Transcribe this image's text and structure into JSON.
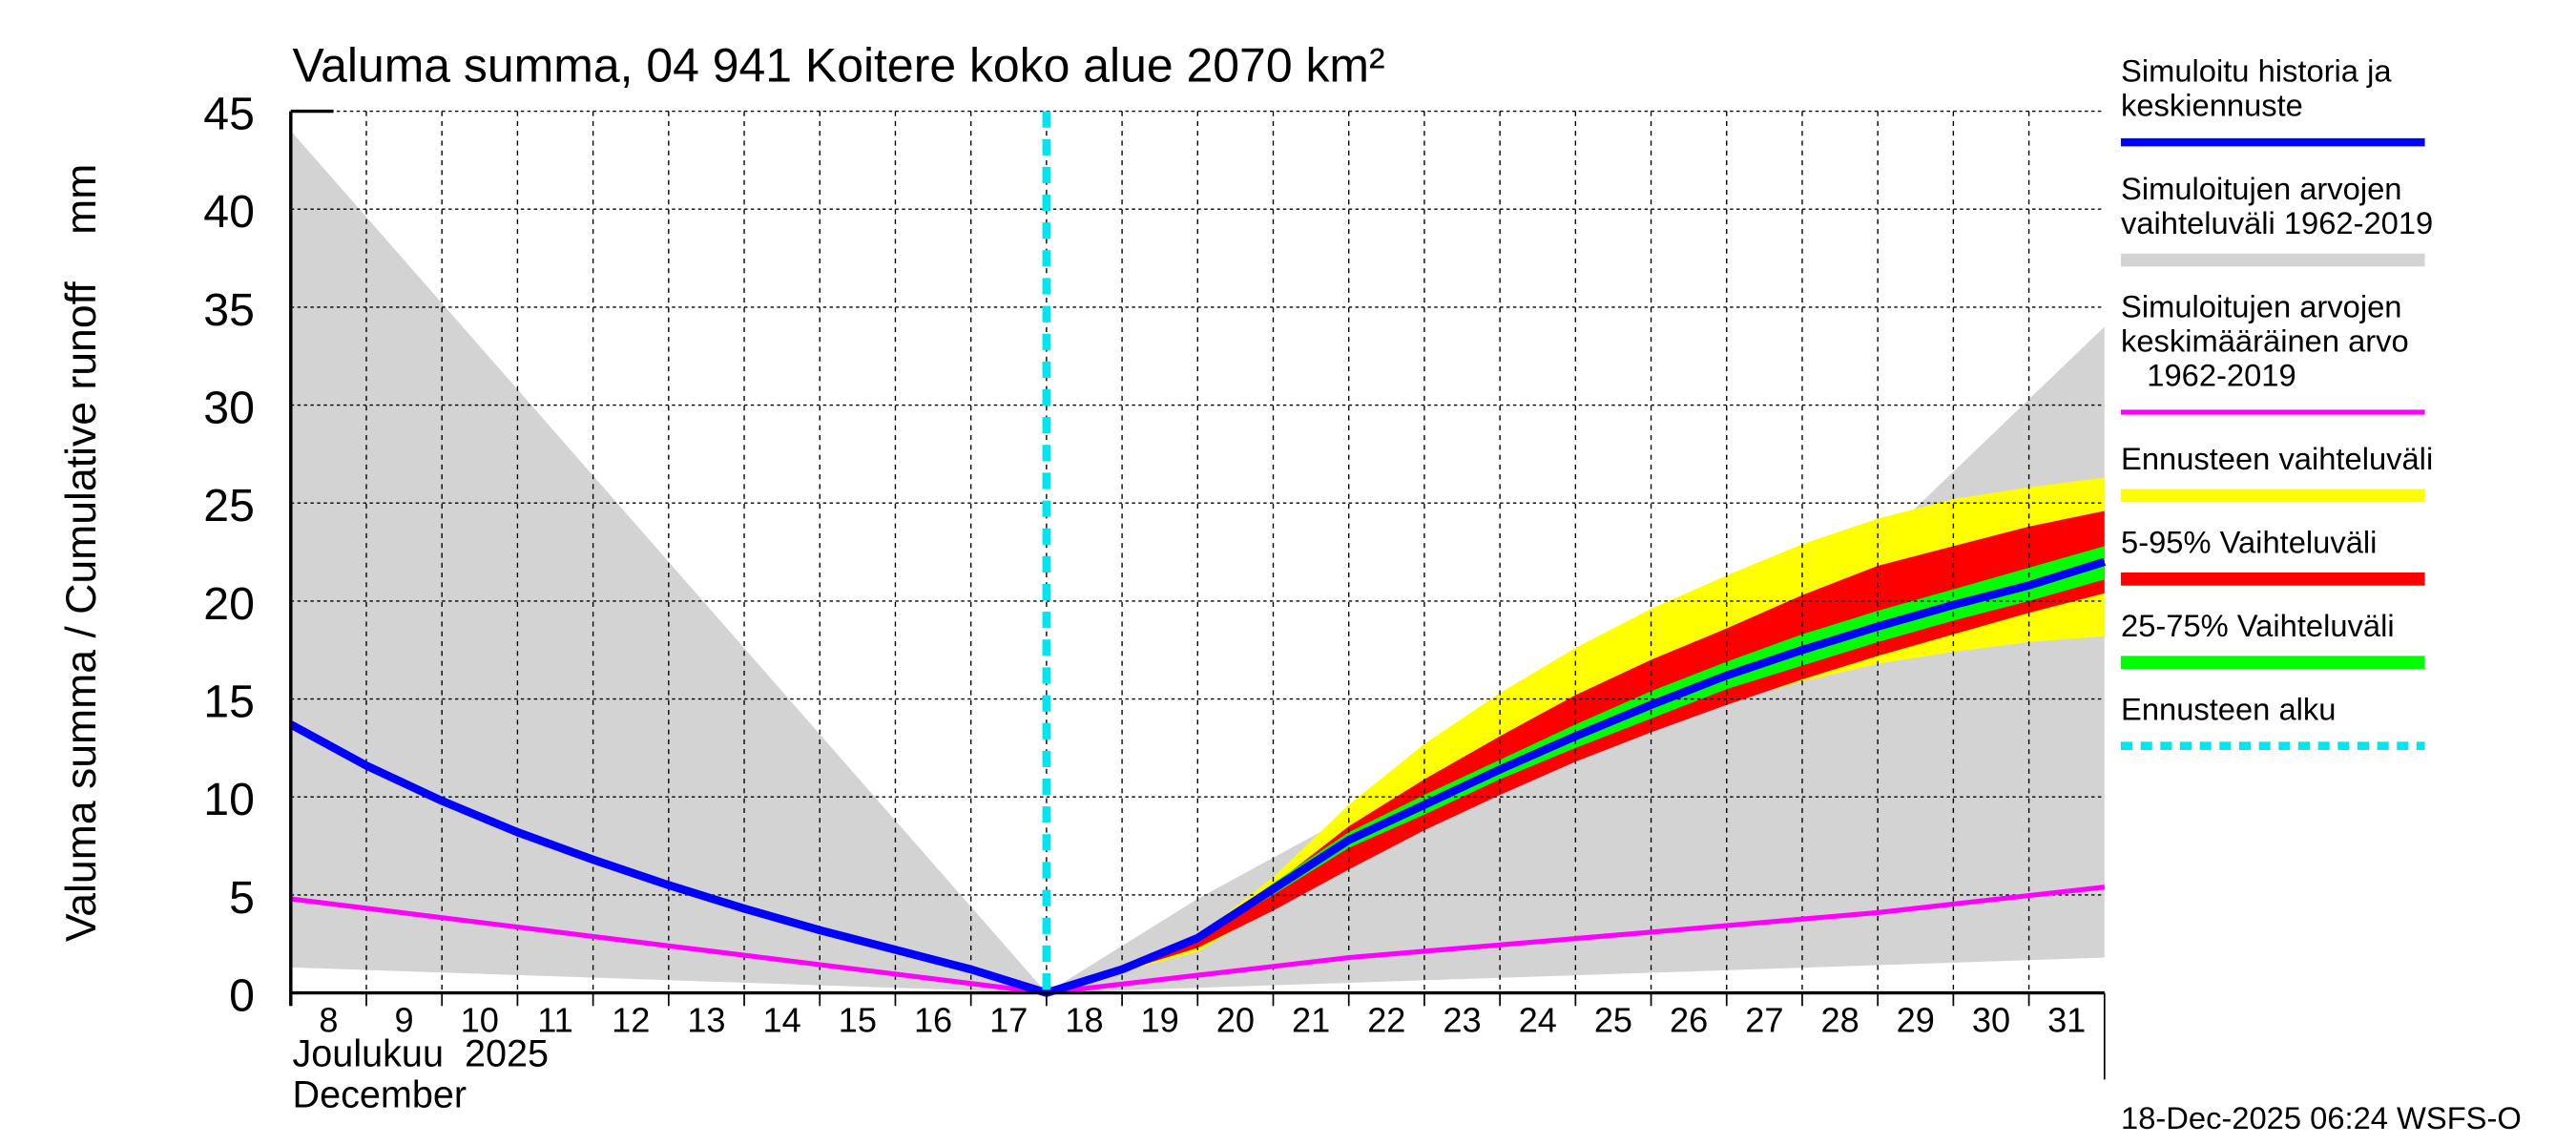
{
  "chart_data": {
    "type": "area",
    "title": "Valuma summa, 04 941 Koitere koko alue 2070 km²",
    "ylabel": "Valuma summa / Cumulative runoff    mm",
    "xlabel_fi": "Joulukuu  2025",
    "xlabel_en": "December",
    "ylim": [
      0,
      45
    ],
    "yticks": [
      0,
      5,
      10,
      15,
      20,
      25,
      30,
      35,
      40,
      45
    ],
    "xlim_days_from_dec8": [
      0,
      24
    ],
    "xtick_labels": [
      "8",
      "9",
      "10",
      "11",
      "12",
      "13",
      "14",
      "15",
      "16",
      "17",
      "18",
      "19",
      "20",
      "21",
      "22",
      "23",
      "24",
      "25",
      "26",
      "27",
      "28",
      "29",
      "30",
      "31"
    ],
    "forecast_start_day": 10,
    "grid": true,
    "timestamp": "18-Dec-2025 06:24 WSFS-O",
    "series": [
      {
        "name": "Simuloitujen arvojen vaihteluväli 1962-2019",
        "kind": "band",
        "color": "#d3d3d3",
        "x": [
          0,
          10,
          12,
          14,
          16,
          18,
          20,
          21,
          24
        ],
        "upper": [
          44,
          0,
          4.8,
          9,
          12.5,
          16,
          18.7,
          22.9,
          34
        ],
        "x_lower": [
          0,
          10,
          24
        ],
        "lower": [
          1.3,
          0,
          1.8
        ]
      },
      {
        "name": "Ennusteen vaihteluväli",
        "kind": "band",
        "color": "#ffff00",
        "x": [
          11,
          12,
          13,
          14,
          15,
          16,
          17,
          18,
          19,
          20,
          21,
          22,
          23,
          24
        ],
        "upper": [
          1.2,
          2.9,
          5.9,
          9.6,
          12.7,
          15.3,
          17.6,
          19.6,
          21.3,
          22.9,
          24.2,
          25.2,
          25.8,
          26.3
        ],
        "lower": [
          1.1,
          2.1,
          4.4,
          6.6,
          8.6,
          10.4,
          12.0,
          13.5,
          14.8,
          15.9,
          16.8,
          17.4,
          17.9,
          18.2
        ]
      },
      {
        "name": "5-95% Vaihteluväli",
        "kind": "band",
        "color": "#ff0000",
        "x": [
          11,
          12,
          13,
          14,
          15,
          16,
          17,
          18,
          19,
          20,
          21,
          22,
          23,
          24
        ],
        "upper": [
          1.2,
          2.9,
          5.5,
          8.5,
          10.9,
          13.1,
          15.2,
          17.0,
          18.6,
          20.3,
          21.8,
          22.8,
          23.8,
          24.6
        ],
        "lower": [
          1.1,
          2.3,
          4.2,
          6.3,
          8.3,
          10.1,
          11.8,
          13.3,
          14.7,
          16.0,
          17.2,
          18.3,
          19.4,
          20.4
        ]
      },
      {
        "name": "25-75% Vaihteluväli",
        "kind": "band",
        "color": "#00ff00",
        "x": [
          11,
          12,
          13,
          14,
          15,
          16,
          17,
          18,
          19,
          20,
          21,
          22,
          23,
          24
        ],
        "upper": [
          1.2,
          2.9,
          5.6,
          8.2,
          10.1,
          11.9,
          13.7,
          15.4,
          16.9,
          18.3,
          19.5,
          20.6,
          21.7,
          22.8
        ],
        "lower": [
          1.2,
          2.7,
          5.0,
          7.4,
          9.1,
          10.9,
          12.5,
          14.0,
          15.5,
          16.7,
          17.9,
          19.0,
          20.0,
          21.1
        ]
      },
      {
        "name": "Simuloitujen arvojen keskimääräinen arvo 1962-2019",
        "kind": "line",
        "color": "#ff00ff",
        "x": [
          0,
          5,
          10,
          14,
          18,
          21,
          24
        ],
        "values": [
          4.8,
          2.4,
          0,
          1.8,
          3.1,
          4.1,
          5.4
        ]
      },
      {
        "name": "Simuloitu historia ja keskiennuste",
        "kind": "line",
        "color": "#0000ff",
        "x": [
          0,
          1,
          2,
          3,
          4,
          5,
          6,
          7,
          8,
          9,
          10,
          11,
          12,
          13,
          14,
          15,
          16,
          17,
          18,
          19,
          20,
          21,
          22,
          23,
          24
        ],
        "values": [
          13.7,
          11.6,
          9.8,
          8.2,
          6.8,
          5.5,
          4.3,
          3.2,
          2.2,
          1.2,
          0,
          1.2,
          2.8,
          5.3,
          7.8,
          9.6,
          11.4,
          13.1,
          14.7,
          16.2,
          17.5,
          18.7,
          19.8,
          20.8,
          22.0
        ]
      }
    ],
    "legend": {
      "placement": "right",
      "entries": [
        {
          "lines": [
            "Simuloitu historia ja",
            "keskiennuste"
          ],
          "color": "#0000ff",
          "style": "line"
        },
        {
          "lines": [
            "Simuloitujen arvojen",
            "vaihteluväli 1962-2019"
          ],
          "color": "#d3d3d3",
          "style": "band"
        },
        {
          "lines": [
            "Simuloitujen arvojen",
            "keskimääräinen arvo",
            "   1962-2019"
          ],
          "color": "#ff00ff",
          "style": "thin"
        },
        {
          "lines": [
            "Ennusteen vaihteluväli"
          ],
          "color": "#ffff00",
          "style": "band"
        },
        {
          "lines": [
            "5-95% Vaihteluväli"
          ],
          "color": "#ff0000",
          "style": "band"
        },
        {
          "lines": [
            "25-75% Vaihteluväli"
          ],
          "color": "#00ff00",
          "style": "band"
        },
        {
          "lines": [
            "Ennusteen alku"
          ],
          "color": "#00e5ee",
          "style": "dashed"
        }
      ]
    }
  }
}
